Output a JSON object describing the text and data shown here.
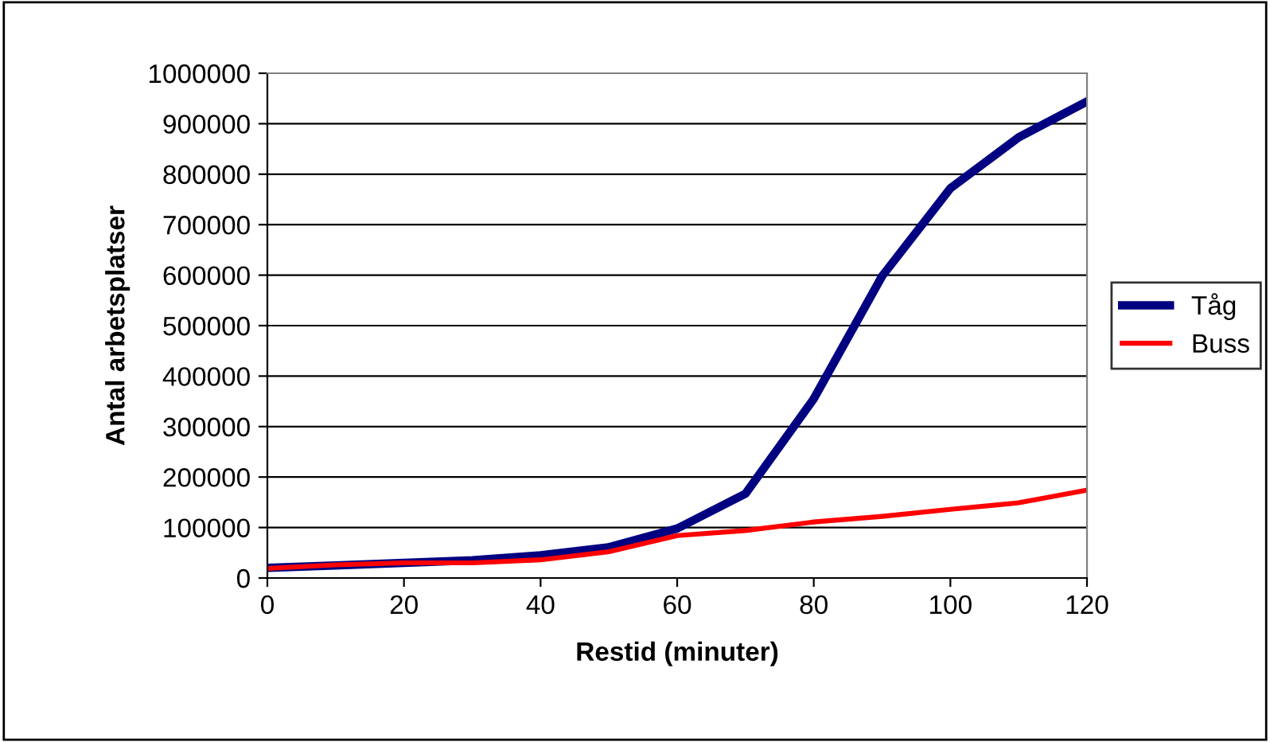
{
  "chart_data": {
    "type": "line",
    "xlabel": "Restid (minuter)",
    "ylabel": "Antal arbetsplatser",
    "x": [
      0,
      10,
      20,
      30,
      40,
      50,
      60,
      70,
      80,
      90,
      100,
      110,
      120
    ],
    "series": [
      {
        "name": "Tåg",
        "color": "#000080",
        "values": [
          20000,
          25000,
          30000,
          35000,
          45000,
          61000,
          98000,
          167000,
          355000,
          598000,
          772000,
          873000,
          944000
        ]
      },
      {
        "name": "Buss",
        "color": "#ff0000",
        "values": [
          19000,
          26000,
          30000,
          30000,
          36000,
          52000,
          84000,
          94000,
          111000,
          122000,
          136000,
          149000,
          174000
        ]
      }
    ],
    "xlim": [
      0,
      120
    ],
    "xticks": [
      0,
      20,
      40,
      60,
      80,
      100,
      120
    ],
    "ylim": [
      0,
      1000000
    ],
    "yticks": [
      0,
      100000,
      200000,
      300000,
      400000,
      500000,
      600000,
      700000,
      800000,
      900000,
      1000000
    ],
    "grid": "y",
    "legend": "right",
    "marker": "none",
    "line_style": "solid"
  }
}
